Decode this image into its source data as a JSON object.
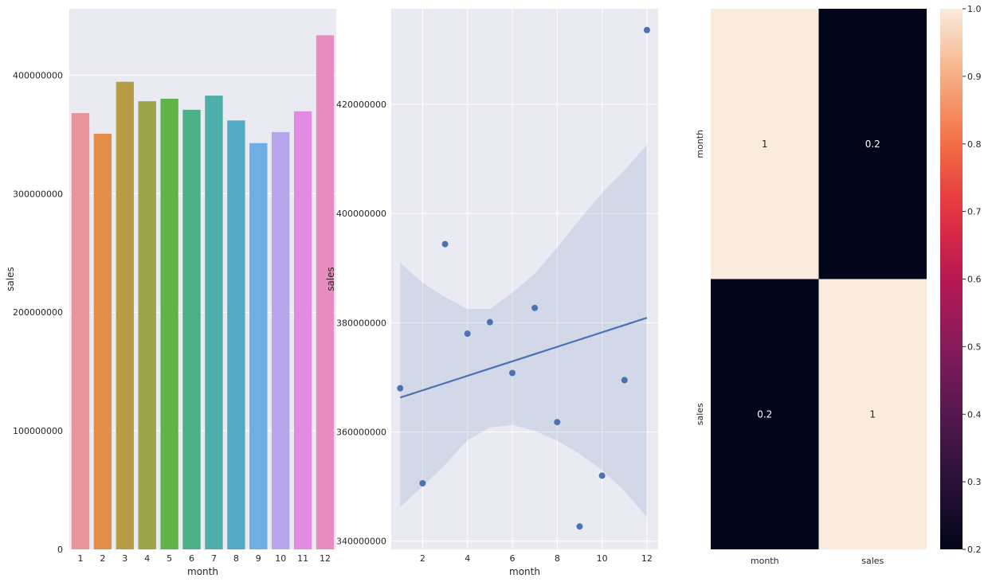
{
  "chart_data": [
    {
      "type": "bar",
      "xlabel": "month",
      "ylabel": "sales",
      "categories": [
        "1",
        "2",
        "3",
        "4",
        "5",
        "6",
        "7",
        "8",
        "9",
        "10",
        "11",
        "12"
      ],
      "values": [
        368000000,
        350600000,
        394400000,
        378000000,
        380100000,
        370800000,
        382700000,
        361800000,
        342700000,
        352000000,
        369500000,
        433600000
      ],
      "colors": [
        "#e9949a",
        "#e48e49",
        "#b69d45",
        "#9ca348",
        "#61b248",
        "#4cb086",
        "#4daeab",
        "#53abc3",
        "#6eaee5",
        "#b8a6ec",
        "#e18be2",
        "#e88cc0"
      ],
      "ylim": [
        0,
        456000000
      ],
      "yticks": [
        0,
        100000000,
        200000000,
        300000000,
        400000000
      ],
      "ytick_labels": [
        "0",
        "100000000",
        "200000000",
        "300000000",
        "400000000"
      ],
      "grid": true
    },
    {
      "type": "scatter",
      "xlabel": "month",
      "ylabel": "sales",
      "x": [
        1,
        2,
        3,
        4,
        5,
        6,
        7,
        8,
        9,
        10,
        11,
        12
      ],
      "y": [
        368000000,
        350600000,
        394400000,
        378000000,
        380100000,
        370800000,
        382700000,
        361800000,
        342700000,
        352000000,
        369500000,
        433600000
      ],
      "regression_line": {
        "x": [
          1,
          12
        ],
        "y": [
          366300000,
          380900000
        ]
      },
      "confidence_band": {
        "x": [
          1,
          2,
          3,
          4,
          5,
          6,
          7,
          8,
          9,
          10,
          11,
          12
        ],
        "upper": [
          391000000,
          387300000,
          384700000,
          382500000,
          382500000,
          385500000,
          389000000,
          393800000,
          398900000,
          403800000,
          407900000,
          412600000
        ],
        "lower": [
          346300000,
          350000000,
          354000000,
          358500000,
          360800000,
          361300000,
          360200000,
          358400000,
          356000000,
          353000000,
          349200000,
          344400000
        ]
      },
      "xlim": [
        0.6,
        12.5
      ],
      "ylim": [
        338500000,
        437500000
      ],
      "xticks": [
        2,
        4,
        6,
        8,
        10,
        12
      ],
      "yticks": [
        340000000,
        360000000,
        380000000,
        400000000,
        420000000
      ],
      "ytick_labels": [
        "340000000",
        "360000000",
        "380000000",
        "400000000",
        "420000000"
      ],
      "color": "#4c72b0",
      "grid": true
    },
    {
      "type": "heatmap",
      "rows": [
        "month",
        "sales"
      ],
      "cols": [
        "month",
        "sales"
      ],
      "values": [
        [
          1,
          0.2
        ],
        [
          0.2,
          1
        ]
      ],
      "annotations": [
        [
          "1",
          "0.2"
        ],
        [
          "0.2",
          "1"
        ]
      ],
      "colorbar": {
        "min": 0.2,
        "max": 1.0,
        "ticks": [
          0.2,
          0.3,
          0.4,
          0.5,
          0.6,
          0.7,
          0.8,
          0.9,
          1.0
        ],
        "tick_labels": [
          "0.2",
          "0.3",
          "0.4",
          "0.5",
          "0.6",
          "0.7",
          "0.8",
          "0.9",
          "1.0"
        ]
      },
      "cmap": "rocket"
    }
  ]
}
